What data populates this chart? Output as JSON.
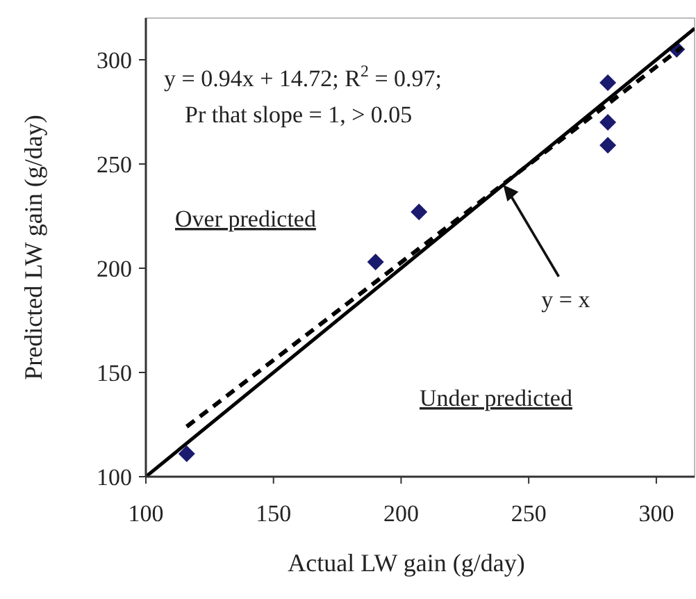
{
  "chart_data": {
    "type": "scatter",
    "xlabel": "Actual LW gain (g/day)",
    "ylabel": "Predicted LW gain (g/day)",
    "xlim": [
      100,
      315
    ],
    "ylim": [
      100,
      320
    ],
    "xticks": [
      100,
      150,
      200,
      250,
      300
    ],
    "yticks": [
      100,
      150,
      200,
      250,
      300
    ],
    "grid": false,
    "marker": "diamond",
    "series": [
      {
        "color": "#1a1a6e",
        "x": [
          116,
          190,
          207,
          281,
          281,
          281,
          308
        ],
        "values": [
          111,
          203,
          227,
          289,
          270,
          259,
          305
        ]
      },
      {
        "type": "line",
        "color": "#000000",
        "line_style": "solid",
        "marker": "none",
        "x": [
          100,
          315
        ],
        "values": [
          100,
          315
        ]
      },
      {
        "type": "line",
        "color": "#000000",
        "line_style": "dashed",
        "marker": "none",
        "x": [
          116,
          310
        ],
        "values": [
          124,
          306
        ]
      }
    ],
    "annotations": [
      "y = 0.94x + 14.72; R$^{2}$ = 0.97;",
      "Pr that slope = 1, > 0.05",
      "Over predicted",
      "Under predicted",
      {
        "text": "y = x",
        "x": 240,
        "y": 240
      }
    ]
  }
}
